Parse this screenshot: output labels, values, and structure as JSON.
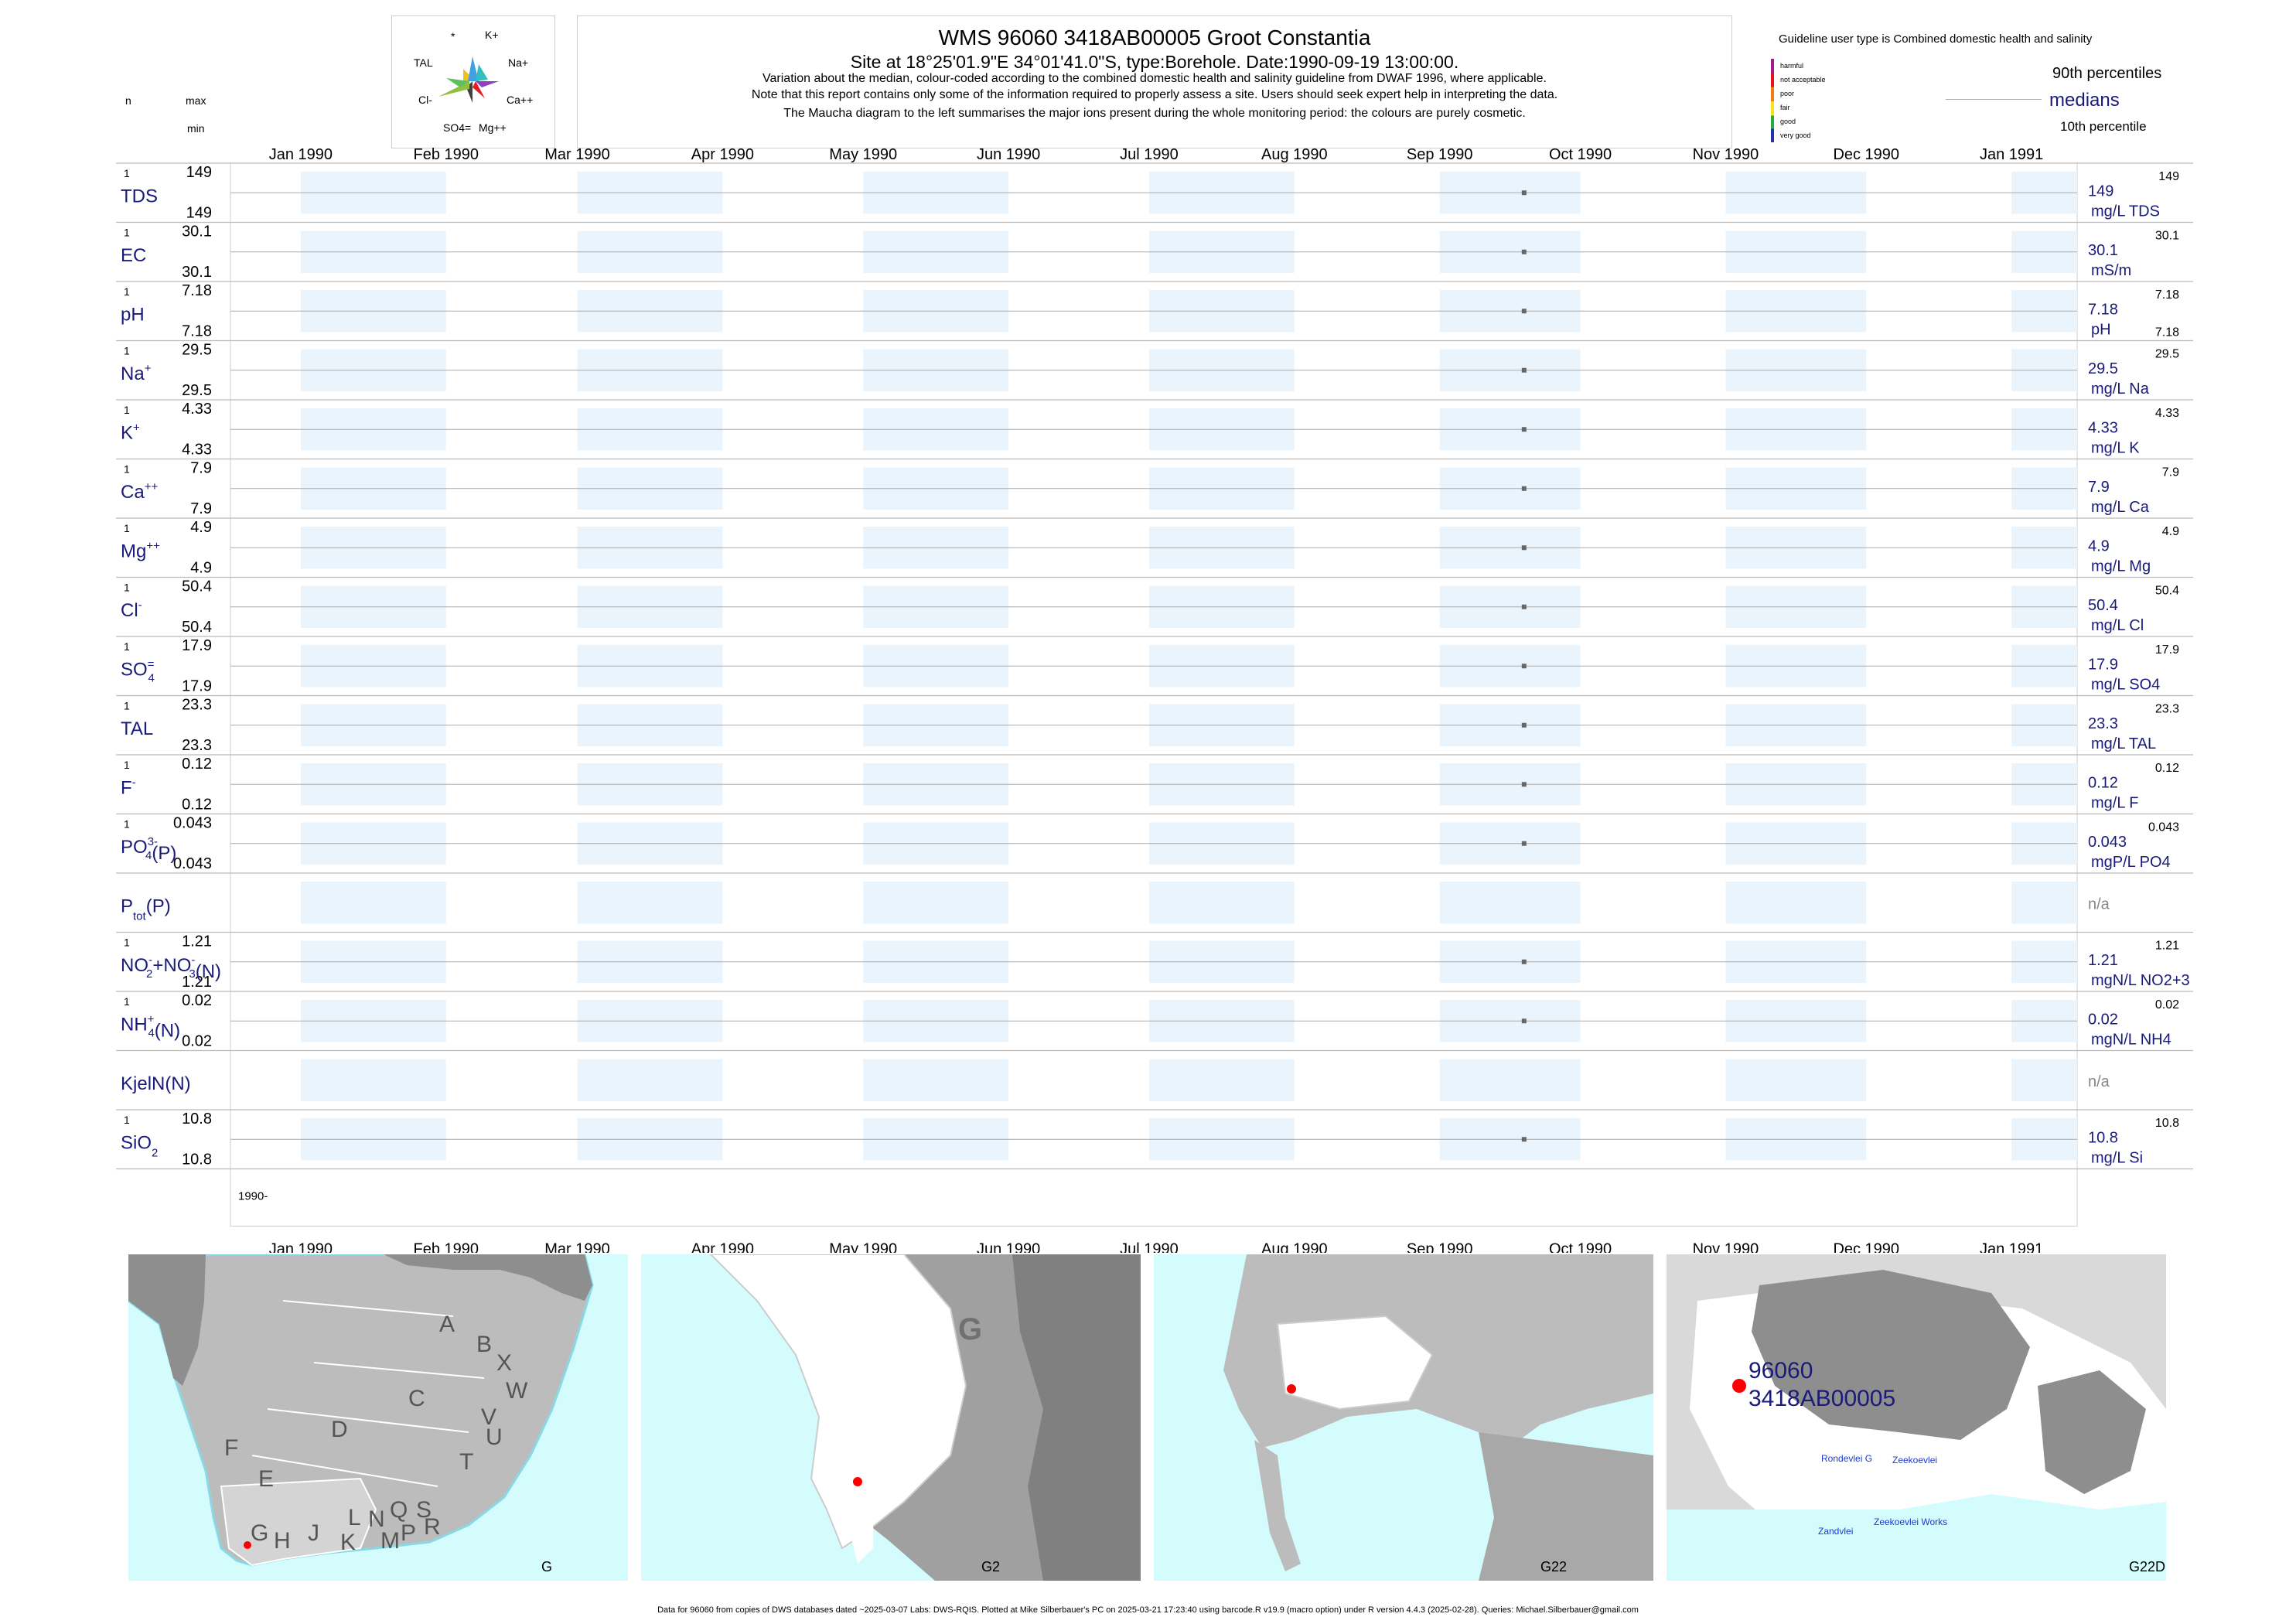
{
  "header": {
    "title": "WMS 96060 3418AB00005 Groot Constantia",
    "subtitle": "Site at 18°25'01.9\"E 34°01'41.0\"S, type:Borehole. Date:1990-09-19 13:00:00.",
    "note1": "Variation about the median,  colour-coded according to the combined domestic health and salinity guideline from DWAF 1996, where applicable.",
    "note2": "Note that this report contains only some of the information required to properly assess a site. Users should seek expert help in interpreting the data.",
    "note3": "The Maucha diagram to the left summarises the major ions present during the whole monitoring period: the colours are purely cosmetic."
  },
  "left_header": {
    "n": "n",
    "max": "max",
    "min": "min"
  },
  "maucha": {
    "labels": [
      "*",
      "K+",
      "TAL",
      "Na+",
      "Cl-",
      "Ca++",
      "SO4=",
      "Mg++"
    ]
  },
  "legend": {
    "guideline_title": "Guideline user type is Combined domestic health and salinity",
    "categories": [
      {
        "label": "harmful",
        "color": "#9b1e8c"
      },
      {
        "label": "not acceptable",
        "color": "#e0161b"
      },
      {
        "label": "poor",
        "color": "#f07c16"
      },
      {
        "label": "fair",
        "color": "#f5e51b"
      },
      {
        "label": "good",
        "color": "#29a843"
      },
      {
        "label": "very good",
        "color": "#2632a6"
      }
    ],
    "p90": "90th percentiles",
    "medians": "medians",
    "p10": "10th percentile"
  },
  "chart_data": {
    "type": "scatter",
    "x_range": [
      "1989-12-17",
      "1991-01-15"
    ],
    "x_ticks": [
      {
        "date": "1990-01-01",
        "label": "Jan 1990"
      },
      {
        "date": "1990-02-01",
        "label": "Feb 1990"
      },
      {
        "date": "1990-03-01",
        "label": "Mar 1990"
      },
      {
        "date": "1990-04-01",
        "label": "Apr 1990"
      },
      {
        "date": "1990-05-01",
        "label": "May 1990"
      },
      {
        "date": "1990-06-01",
        "label": "Jun 1990"
      },
      {
        "date": "1990-07-01",
        "label": "Jul 1990"
      },
      {
        "date": "1990-08-01",
        "label": "Aug 1990"
      },
      {
        "date": "1990-09-01",
        "label": "Sep 1990"
      },
      {
        "date": "1990-10-01",
        "label": "Oct 1990"
      },
      {
        "date": "1990-11-01",
        "label": "Nov 1990"
      },
      {
        "date": "1990-12-01",
        "label": "Dec 1990"
      },
      {
        "date": "1991-01-01",
        "label": "Jan 1991"
      }
    ],
    "sample_date": "1990-09-19",
    "year_label": "1990-",
    "grid": true,
    "series": [
      {
        "name": "TDS",
        "n": "1",
        "max": "149",
        "min": "149",
        "value": 149,
        "median": "149",
        "unit": "mg/L TDS",
        "p90": "149",
        "p10": ""
      },
      {
        "name": "EC",
        "n": "1",
        "max": "30.1",
        "min": "30.1",
        "value": 30.1,
        "median": "30.1",
        "unit": "mS/m",
        "p90": "30.1",
        "p10": ""
      },
      {
        "name": "pH",
        "n": "1",
        "max": "7.18",
        "min": "7.18",
        "value": 7.18,
        "median": "7.18",
        "unit": "pH",
        "p90": "7.18",
        "p10": "7.18"
      },
      {
        "name": "Na",
        "sup": "+",
        "n": "1",
        "max": "29.5",
        "min": "29.5",
        "value": 29.5,
        "median": "29.5",
        "unit": "mg/L Na",
        "p90": "29.5",
        "p10": ""
      },
      {
        "name": "K",
        "sup": "+",
        "n": "1",
        "max": "4.33",
        "min": "4.33",
        "value": 4.33,
        "median": "4.33",
        "unit": "mg/L K",
        "p90": "4.33",
        "p10": ""
      },
      {
        "name": "Ca",
        "sup": "++",
        "n": "1",
        "max": "7.9",
        "min": "7.9",
        "value": 7.9,
        "median": "7.9",
        "unit": "mg/L Ca",
        "p90": "7.9",
        "p10": ""
      },
      {
        "name": "Mg",
        "sup": "++",
        "n": "1",
        "max": "4.9",
        "min": "4.9",
        "value": 4.9,
        "median": "4.9",
        "unit": "mg/L Mg",
        "p90": "4.9",
        "p10": ""
      },
      {
        "name": "Cl",
        "sup": "-",
        "n": "1",
        "max": "50.4",
        "min": "50.4",
        "value": 50.4,
        "median": "50.4",
        "unit": "mg/L Cl",
        "p90": "50.4",
        "p10": ""
      },
      {
        "name": "SO",
        "sup": "=",
        "sub": "4",
        "n": "1",
        "max": "17.9",
        "min": "17.9",
        "value": 17.9,
        "median": "17.9",
        "unit": "mg/L SO4",
        "p90": "17.9",
        "p10": ""
      },
      {
        "name": "TAL",
        "n": "1",
        "max": "23.3",
        "min": "23.3",
        "value": 23.3,
        "median": "23.3",
        "unit": "mg/L TAL",
        "p90": "23.3",
        "p10": ""
      },
      {
        "name": "F",
        "sup": "-",
        "n": "1",
        "max": "0.12",
        "min": "0.12",
        "value": 0.12,
        "median": "0.12",
        "unit": "mg/L F",
        "p90": "0.12",
        "p10": ""
      },
      {
        "name": "PO",
        "sup": "3-",
        "sub": "4",
        "suffix": "(P)",
        "n": "1",
        "max": "0.043",
        "min": "0.043",
        "value": 0.043,
        "median": "0.043",
        "unit": "mgP/L PO4",
        "p90": "0.043",
        "p10": ""
      },
      {
        "name": "P",
        "sub": "tot",
        "suffix": "(P)",
        "n": "",
        "max": "",
        "min": "",
        "value": null,
        "median": "n/a",
        "unit": "",
        "p90": "",
        "p10": ""
      },
      {
        "name": "NO",
        "sup": "-",
        "sub": "2",
        "mid": "+NO",
        "sup2": "-",
        "sub2": "3",
        "suffix": "(N)",
        "n": "1",
        "max": "1.21",
        "min": "1.21",
        "value": 1.21,
        "median": "1.21",
        "unit": "mgN/L NO2+3",
        "p90": "1.21",
        "p10": ""
      },
      {
        "name": "NH",
        "sup": "+",
        "sub": "4",
        "suffix": "(N)",
        "n": "1",
        "max": "0.02",
        "min": "0.02",
        "value": 0.02,
        "median": "0.02",
        "unit": "mgN/L NH4",
        "p90": "0.02",
        "p10": ""
      },
      {
        "name": "KjelN(N)",
        "n": "",
        "max": "",
        "min": "",
        "value": null,
        "median": "n/a",
        "unit": "",
        "p90": "",
        "p10": ""
      },
      {
        "name": "SiO",
        "sub": "2",
        "n": "1",
        "max": "10.8",
        "min": "10.8",
        "value": 10.8,
        "median": "10.8",
        "unit": "mg/L Si",
        "p90": "10.8",
        "p10": ""
      }
    ]
  },
  "maps": {
    "map1": {
      "label": "G",
      "regions": [
        "A",
        "B",
        "X",
        "W",
        "C",
        "V",
        "U",
        "T",
        "D",
        "F",
        "E",
        "G",
        "H",
        "J",
        "K",
        "L",
        "N",
        "M",
        "Q",
        "P",
        "S",
        "R"
      ]
    },
    "map2": {
      "label": "G2",
      "region": "G"
    },
    "map3": {
      "label": "G22"
    },
    "map4": {
      "label": "G22D",
      "station_id": "96060",
      "station_code": "3418AB00005",
      "places": [
        "Rondevlei G",
        "Zeekoevlei",
        "Zeekoevlei Works",
        "Zandvlei"
      ]
    }
  },
  "colors": {
    "background_band": "#eaf4fd",
    "navy": "#1a1a7a",
    "sea": "#d4fcfd",
    "land": "#bdbdbd",
    "land_dark": "#8e8e8e",
    "station": "#ff0000"
  },
  "footer": "Data for 96060 from copies of DWS databases dated ~2025-03-07 Labs: DWS-RQIS. Plotted at Mike Silberbauer's PC on 2025-03-21 17:23:40 using barcode.R v19.9 (macro option) under R version 4.4.3 (2025-02-28). Queries: Michael.Silberbauer@gmail.com"
}
